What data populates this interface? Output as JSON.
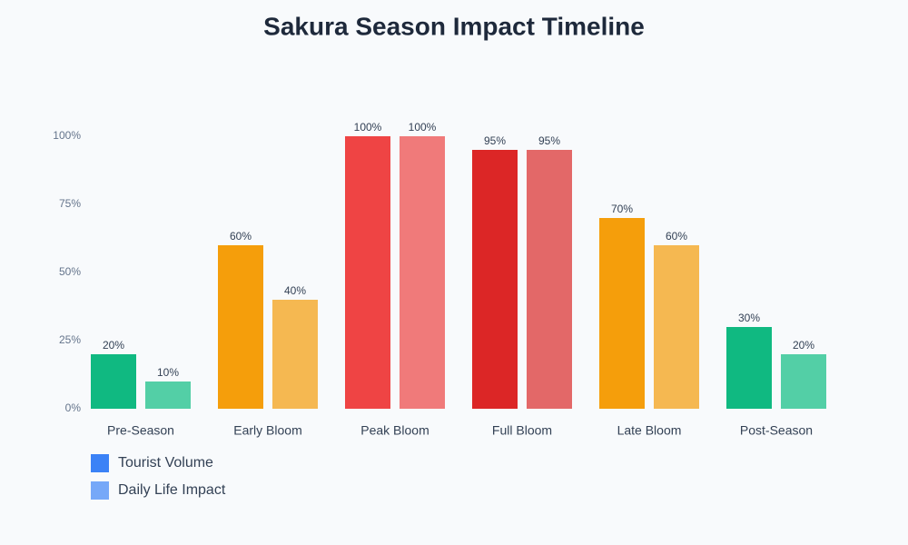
{
  "chart_data": {
    "type": "bar",
    "title": "Sakura Season Impact Timeline",
    "categories": [
      "Pre-Season",
      "Early Bloom",
      "Peak Bloom",
      "Full Bloom",
      "Late Bloom",
      "Post-Season"
    ],
    "series": [
      {
        "name": "Tourist Volume",
        "color": "#3b82f6",
        "bar_colors": [
          "#10b981",
          "#f59e0b",
          "#ef4444",
          "#dc2626",
          "#f59e0b",
          "#10b981"
        ],
        "values": [
          20,
          60,
          100,
          95,
          70,
          30
        ],
        "value_labels": [
          "20%",
          "60%",
          "100%",
          "95%",
          "70%",
          "30%"
        ]
      },
      {
        "name": "Daily Life Impact",
        "color": "#76a8f8",
        "bar_colors": [
          "#53cfa6",
          "#f5b851",
          "#f07a7a",
          "#e36868",
          "#f5b851",
          "#53cfa6"
        ],
        "values": [
          10,
          40,
          100,
          95,
          60,
          20
        ],
        "value_labels": [
          "10%",
          "40%",
          "100%",
          "95%",
          "60%",
          "20%"
        ]
      }
    ],
    "ylim": [
      0,
      100
    ],
    "yticks": [
      {
        "value": 0,
        "label": "0%"
      },
      {
        "value": 25,
        "label": "25%"
      },
      {
        "value": 50,
        "label": "50%"
      },
      {
        "value": 75,
        "label": "75%"
      },
      {
        "value": 100,
        "label": "100%"
      }
    ],
    "grid": false
  }
}
